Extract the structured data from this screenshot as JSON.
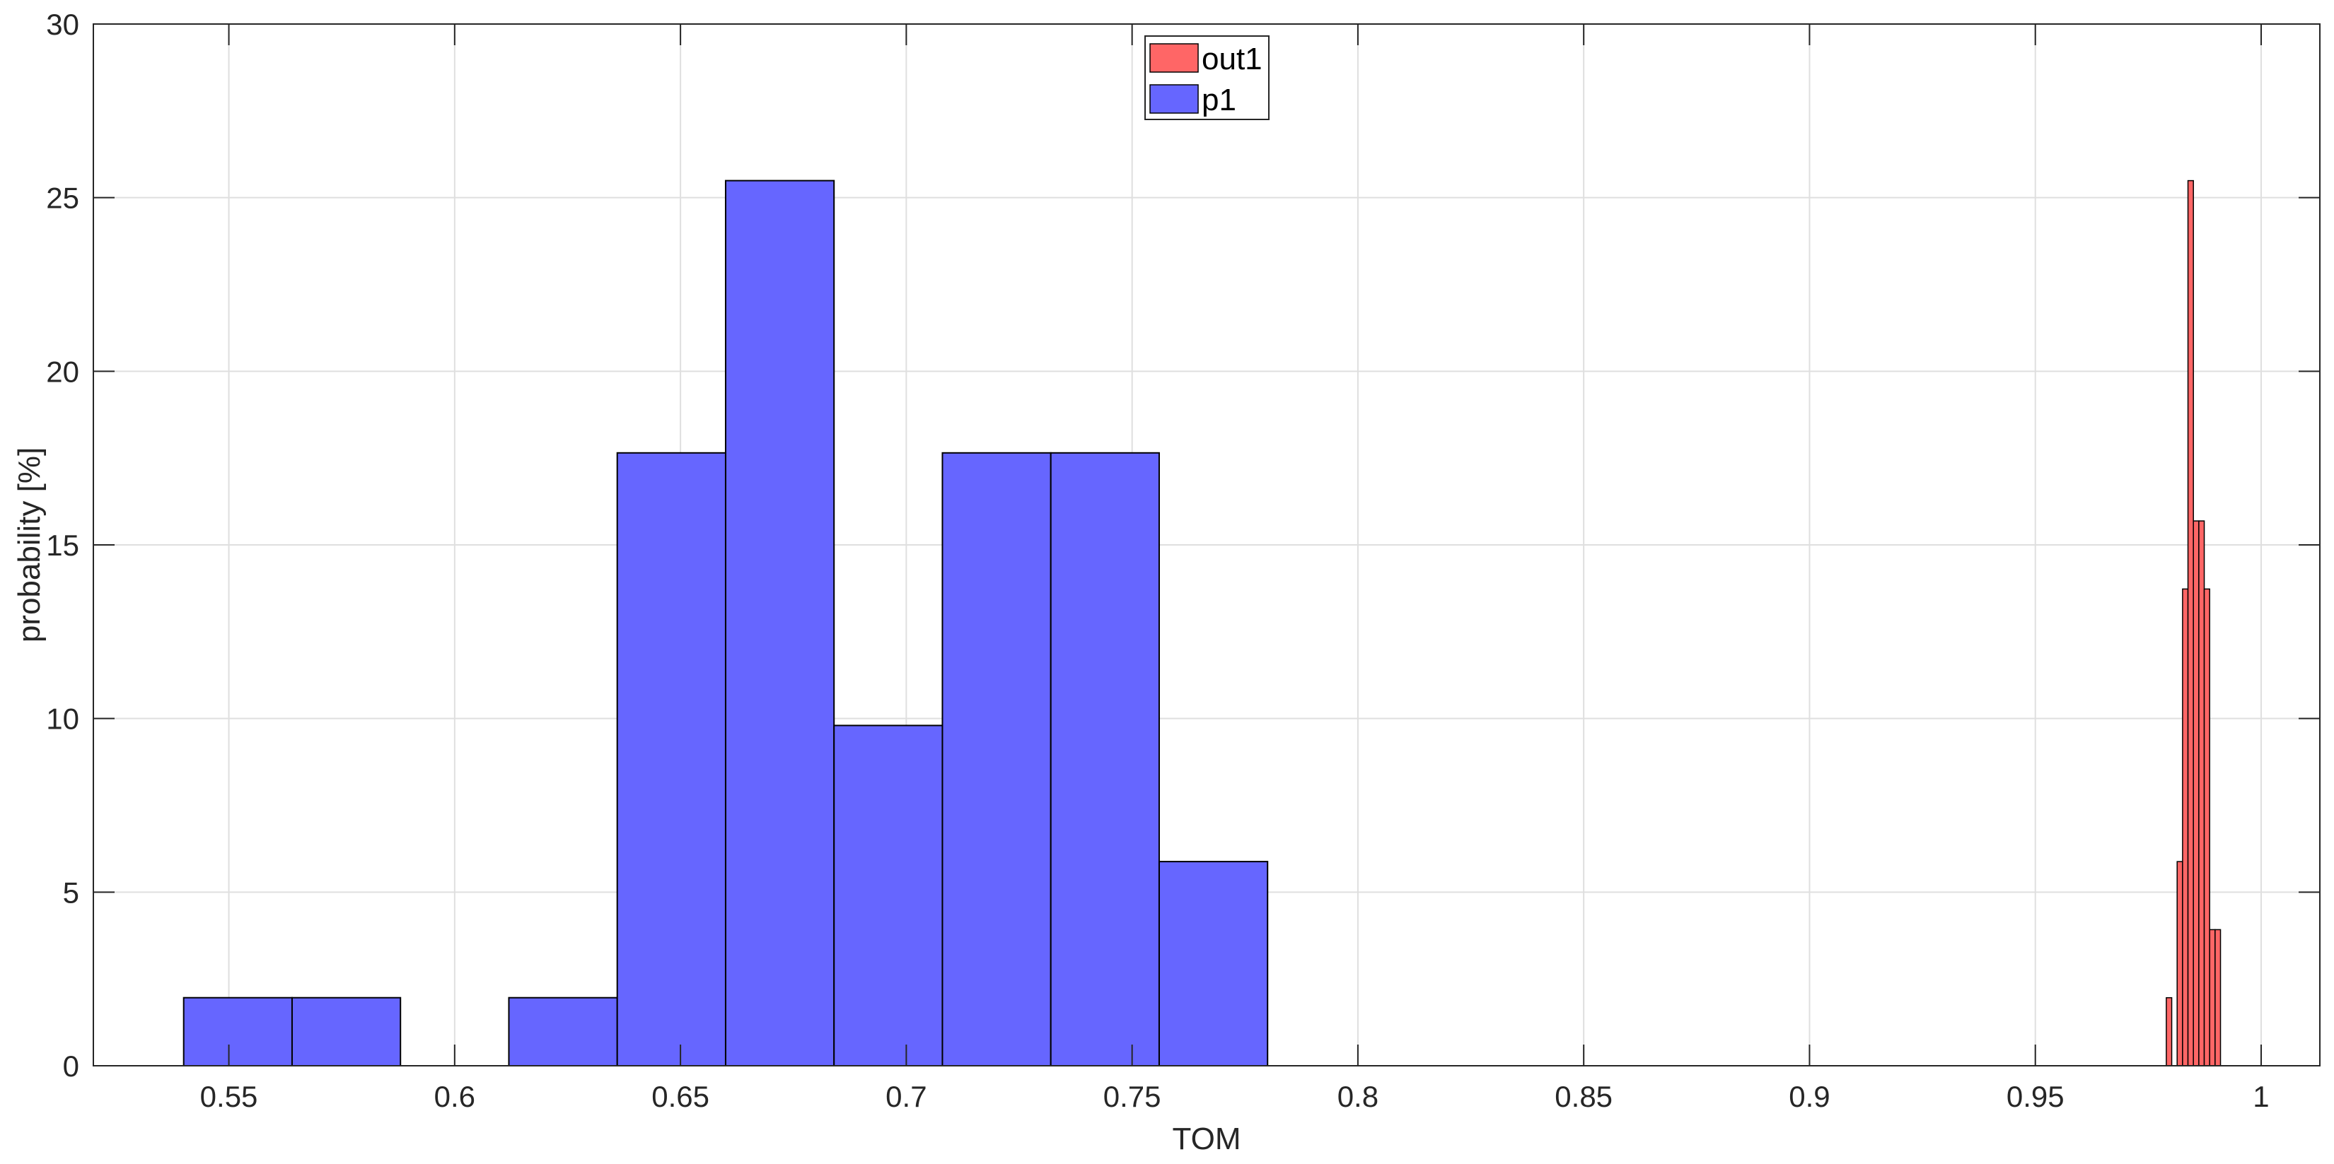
{
  "chart_data": {
    "type": "bar",
    "xlabel": "TOM",
    "ylabel": "probability [%]",
    "xlim": [
      0.52,
      1.013
    ],
    "ylim": [
      0,
      30
    ],
    "grid": true,
    "legend_position": "top-center",
    "x_ticks": [
      "0.55",
      "0.6",
      "0.65",
      "0.7",
      "0.75",
      "0.8",
      "0.85",
      "0.9",
      "0.95",
      "1"
    ],
    "y_ticks": [
      "0",
      "5",
      "10",
      "15",
      "20",
      "25",
      "30"
    ],
    "series": [
      {
        "name": "out1",
        "color": "#ff6666",
        "bins": [
          {
            "x0": 0.979,
            "x1": 0.9802,
            "value": 1.96
          },
          {
            "x0": 0.9802,
            "x1": 0.9814,
            "value": 0
          },
          {
            "x0": 0.9814,
            "x1": 0.9826,
            "value": 5.88
          },
          {
            "x0": 0.9826,
            "x1": 0.9838,
            "value": 13.73
          },
          {
            "x0": 0.9838,
            "x1": 0.985,
            "value": 25.49
          },
          {
            "x0": 0.985,
            "x1": 0.9862,
            "value": 15.69
          },
          {
            "x0": 0.9862,
            "x1": 0.9874,
            "value": 15.69
          },
          {
            "x0": 0.9874,
            "x1": 0.9886,
            "value": 13.73
          },
          {
            "x0": 0.9886,
            "x1": 0.9898,
            "value": 3.92
          },
          {
            "x0": 0.9898,
            "x1": 0.991,
            "value": 3.92
          }
        ]
      },
      {
        "name": "p1",
        "color": "#6666ff",
        "bins": [
          {
            "x0": 0.54,
            "x1": 0.564,
            "value": 1.96
          },
          {
            "x0": 0.564,
            "x1": 0.588,
            "value": 1.96
          },
          {
            "x0": 0.588,
            "x1": 0.612,
            "value": 0
          },
          {
            "x0": 0.612,
            "x1": 0.636,
            "value": 1.96
          },
          {
            "x0": 0.636,
            "x1": 0.66,
            "value": 17.65
          },
          {
            "x0": 0.66,
            "x1": 0.684,
            "value": 25.49
          },
          {
            "x0": 0.684,
            "x1": 0.708,
            "value": 9.8
          },
          {
            "x0": 0.708,
            "x1": 0.732,
            "value": 17.65
          },
          {
            "x0": 0.732,
            "x1": 0.756,
            "value": 17.65
          },
          {
            "x0": 0.756,
            "x1": 0.78,
            "value": 5.88
          }
        ]
      }
    ]
  }
}
